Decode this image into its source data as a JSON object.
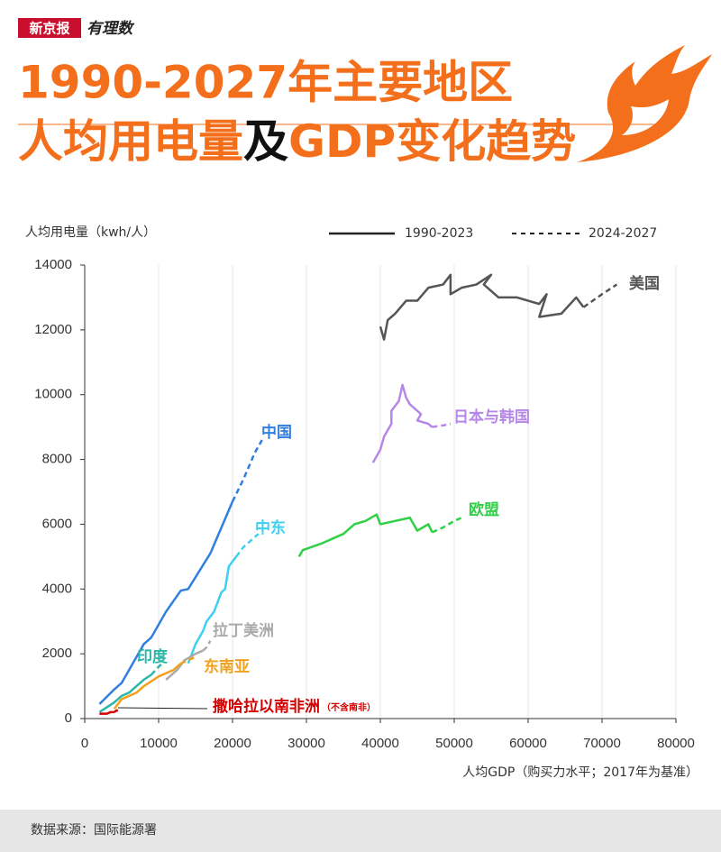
{
  "brand": {
    "name": "新京报",
    "column": "有理数"
  },
  "chart_data": {
    "type": "line",
    "title": {
      "line1": "1990-2027年主要地区",
      "line2": [
        "人均用电量",
        "及",
        "GDP变化趋势"
      ]
    },
    "y_axis_label": "人均用电量（kwh/人）",
    "x_axis_label": "人均GDP（购买力水平；2017年为基准）",
    "legend": {
      "solid": "1990-2023",
      "dashed": "2024-2027"
    },
    "xlim": [
      0,
      80000
    ],
    "ylim": [
      0,
      14000
    ],
    "xticks": [
      0,
      10000,
      20000,
      30000,
      40000,
      50000,
      60000,
      70000,
      80000
    ],
    "yticks": [
      0,
      2000,
      4000,
      6000,
      8000,
      10000,
      12000,
      14000
    ],
    "grid": "x",
    "series": [
      {
        "name": "中国",
        "color": "#2f7fe0",
        "x": [
          2000,
          4000,
          5000,
          6000,
          8000,
          9000,
          11000,
          13000,
          14000,
          17000,
          20000
        ],
        "values": [
          450,
          900,
          1100,
          1500,
          2300,
          2500,
          3300,
          3950,
          4000,
          5100,
          6700
        ],
        "forecast_x": [
          20000,
          21500,
          23000,
          24000
        ],
        "forecast_values": [
          6700,
          7400,
          8200,
          8600
        ]
      },
      {
        "name": "中东",
        "color": "#3dd0f0",
        "x": [
          14000,
          15000,
          16000,
          16500,
          17500,
          18500,
          19000,
          19500,
          20500
        ],
        "values": [
          1700,
          2300,
          2700,
          3000,
          3300,
          3900,
          4000,
          4700,
          5000
        ],
        "forecast_x": [
          20500,
          21500,
          22500,
          23500
        ],
        "forecast_values": [
          5000,
          5300,
          5500,
          5700
        ]
      },
      {
        "name": "拉丁美洲",
        "color": "#aaaaaa",
        "x": [
          11000,
          12500,
          13500,
          15000,
          16000
        ],
        "values": [
          1200,
          1500,
          1800,
          2000,
          2100
        ],
        "forecast_x": [
          16000,
          16500,
          17000
        ],
        "forecast_values": [
          2100,
          2200,
          2400
        ]
      },
      {
        "name": "印度",
        "color": "#2ab7a9",
        "x": [
          2000,
          3000,
          4000,
          5000,
          6000,
          7000,
          8000,
          9000
        ],
        "values": [
          200,
          350,
          500,
          700,
          800,
          1000,
          1200,
          1350
        ],
        "forecast_x": [
          9000,
          10000,
          10500
        ],
        "forecast_values": [
          1350,
          1600,
          1700
        ]
      },
      {
        "name": "东南亚",
        "color": "#f2a11f",
        "x": [
          4000,
          5000,
          6000,
          7000,
          8000,
          10000,
          12000,
          13000
        ],
        "values": [
          300,
          600,
          700,
          800,
          1000,
          1300,
          1500,
          1700
        ],
        "forecast_x": [
          13000,
          14000,
          15000
        ],
        "forecast_values": [
          1700,
          1800,
          1900
        ]
      },
      {
        "name": "撒哈拉以南非洲",
        "note": "（不含南非）",
        "color": "#d40000",
        "x": [
          2000,
          3000,
          3500,
          4000
        ],
        "values": [
          150,
          150,
          200,
          200
        ],
        "forecast_x": [
          4000,
          4300,
          4500
        ],
        "forecast_values": [
          200,
          250,
          250
        ]
      },
      {
        "name": "欧盟",
        "color": "#2fd045",
        "x": [
          29000,
          29500,
          32000,
          35000,
          36500,
          38000,
          39500,
          40000,
          42000,
          44000,
          45000,
          46500,
          47000
        ],
        "values": [
          5000,
          5200,
          5400,
          5700,
          6000,
          6100,
          6300,
          6000,
          6100,
          6200,
          5800,
          6000,
          5750
        ],
        "forecast_x": [
          47000,
          48500,
          50000,
          51000
        ],
        "forecast_values": [
          5750,
          5900,
          6100,
          6200
        ]
      },
      {
        "name": "日本与韩国",
        "color": "#b587e8",
        "x": [
          39000,
          40000,
          40500,
          41500,
          41500,
          42500,
          43000,
          43500,
          44000,
          45500,
          45000,
          46500,
          47000
        ],
        "values": [
          7900,
          8300,
          8700,
          9100,
          9500,
          9800,
          10300,
          9900,
          9700,
          9400,
          9200,
          9100,
          9000
        ],
        "forecast_x": [
          47000,
          48500,
          49500
        ],
        "forecast_values": [
          9000,
          9050,
          9100
        ]
      },
      {
        "name": "美国",
        "color": "#555555",
        "x": [
          40000,
          40500,
          41000,
          42000,
          43500,
          45000,
          46500,
          48500,
          49500,
          49500,
          51000,
          53000,
          55000,
          54000,
          56000,
          58500,
          61500,
          62500,
          61500,
          64500,
          66500,
          67500
        ],
        "values": [
          12100,
          11700,
          12300,
          12500,
          12900,
          12900,
          13300,
          13400,
          13700,
          13100,
          13300,
          13400,
          13700,
          13400,
          13000,
          13000,
          12800,
          13100,
          12400,
          12500,
          13000,
          12700
        ],
        "forecast_x": [
          67500,
          70000,
          72000
        ],
        "forecast_values": [
          12700,
          13100,
          13400
        ]
      }
    ]
  },
  "source": "数据来源：国际能源署"
}
